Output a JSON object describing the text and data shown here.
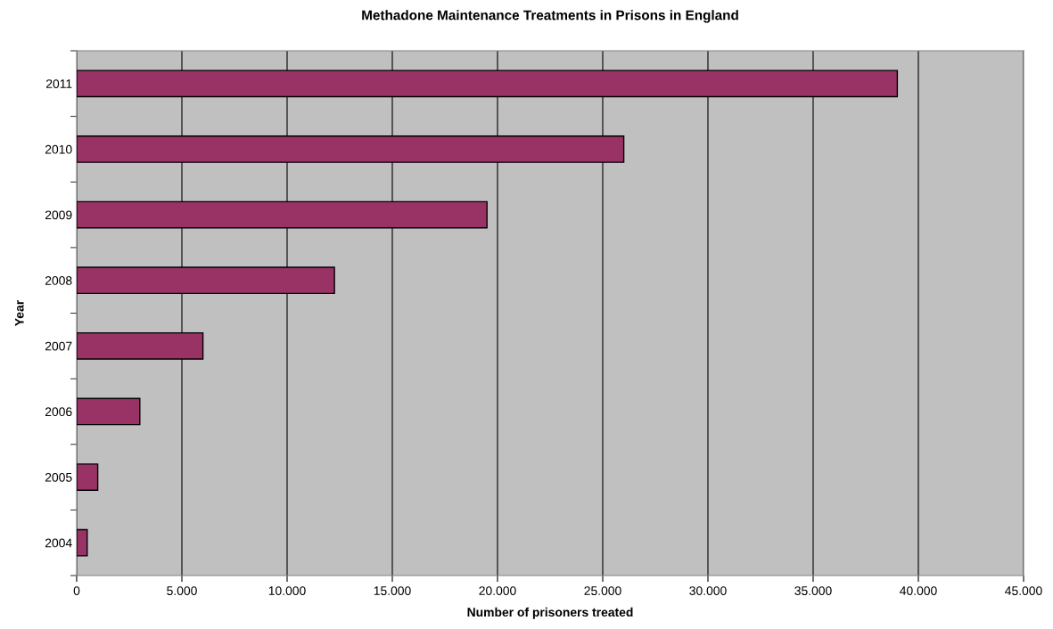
{
  "chart_data": {
    "type": "bar",
    "orientation": "horizontal",
    "title": "Methadone Maintenance Treatments in Prisons in England",
    "xlabel": "Number of prisoners treated",
    "ylabel": "Year",
    "categories": [
      "2011",
      "2010",
      "2009",
      "2008",
      "2007",
      "2006",
      "2005",
      "2004"
    ],
    "values": [
      39000,
      26000,
      19500,
      12250,
      6000,
      3000,
      1000,
      500
    ],
    "color": "#993366",
    "xlim": [
      0,
      45000
    ],
    "xticks": [
      0,
      {
        "value": 5000,
        "label": "5.000"
      },
      {
        "value": 10000,
        "label": "10.000"
      },
      {
        "value": 15000,
        "label": "15.000"
      },
      {
        "value": 20000,
        "label": "20.000"
      },
      {
        "value": 25000,
        "label": "25.000"
      },
      {
        "value": 30000,
        "label": "30.000"
      },
      {
        "value": 35000,
        "label": "35.000"
      },
      {
        "value": 40000,
        "label": "40.000"
      },
      {
        "value": 45000,
        "label": "45.000"
      }
    ],
    "grid": "x",
    "legend": false
  }
}
